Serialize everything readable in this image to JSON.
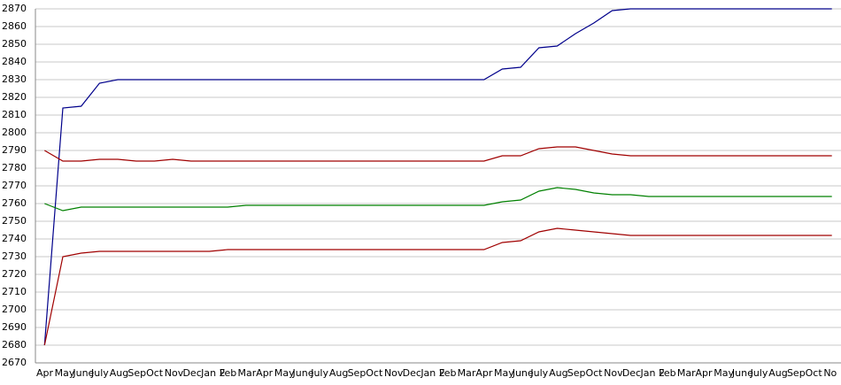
{
  "chart_data": {
    "type": "line",
    "categories": [
      "Apr",
      "May",
      "June",
      "July",
      "Aug",
      "Sep",
      "Oct",
      "Nov",
      "Dec",
      "Jan 2",
      "Feb",
      "Mar",
      "Apr",
      "May",
      "June",
      "July",
      "Aug",
      "Sep",
      "Oct",
      "Nov",
      "Dec",
      "Jan 2",
      "Feb",
      "Mar",
      "Apr",
      "May",
      "June",
      "July",
      "Aug",
      "Sep",
      "Oct",
      "Nov",
      "Dec",
      "Jan 2",
      "Feb",
      "Mar",
      "Apr",
      "May",
      "June",
      "July",
      "Aug",
      "Sep",
      "Oct",
      "No"
    ],
    "series": [
      {
        "color": "#00008b",
        "values": [
          2680,
          2814,
          2815,
          2828,
          2830,
          2830,
          2830,
          2830,
          2830,
          2830,
          2830,
          2830,
          2830,
          2830,
          2830,
          2830,
          2830,
          2830,
          2830,
          2830,
          2830,
          2830,
          2830,
          2830,
          2830,
          2836,
          2837,
          2848,
          2849,
          2856,
          2862,
          2869,
          2870,
          2870,
          2870,
          2870,
          2870,
          2870,
          2870,
          2870,
          2870,
          2870,
          2870,
          2870
        ]
      },
      {
        "color": "#a00000",
        "values": [
          2790,
          2784,
          2784,
          2785,
          2785,
          2784,
          2784,
          2785,
          2784,
          2784,
          2784,
          2784,
          2784,
          2784,
          2784,
          2784,
          2784,
          2784,
          2784,
          2784,
          2784,
          2784,
          2784,
          2784,
          2784,
          2787,
          2787,
          2791,
          2792,
          2792,
          2790,
          2788,
          2787,
          2787,
          2787,
          2787,
          2787,
          2787,
          2787,
          2787,
          2787,
          2787,
          2787,
          2787
        ]
      },
      {
        "color": "#008000",
        "values": [
          2760,
          2756,
          2758,
          2758,
          2758,
          2758,
          2758,
          2758,
          2758,
          2758,
          2758,
          2759,
          2759,
          2759,
          2759,
          2759,
          2759,
          2759,
          2759,
          2759,
          2759,
          2759,
          2759,
          2759,
          2759,
          2761,
          2762,
          2767,
          2769,
          2768,
          2766,
          2765,
          2765,
          2764,
          2764,
          2764,
          2764,
          2764,
          2764,
          2764,
          2764,
          2764,
          2764,
          2764
        ]
      },
      {
        "color": "#a00000",
        "values": [
          2680,
          2730,
          2732,
          2733,
          2733,
          2733,
          2733,
          2733,
          2733,
          2733,
          2734,
          2734,
          2734,
          2734,
          2734,
          2734,
          2734,
          2734,
          2734,
          2734,
          2734,
          2734,
          2734,
          2734,
          2734,
          2738,
          2739,
          2744,
          2746,
          2745,
          2744,
          2743,
          2742,
          2742,
          2742,
          2742,
          2742,
          2742,
          2742,
          2742,
          2742,
          2742,
          2742,
          2742
        ]
      }
    ],
    "ylim": [
      2670,
      2870
    ],
    "yticks": [
      2670,
      2680,
      2690,
      2700,
      2710,
      2720,
      2730,
      2740,
      2750,
      2760,
      2770,
      2780,
      2790,
      2800,
      2810,
      2820,
      2830,
      2840,
      2850,
      2860,
      2870
    ],
    "grid": true
  }
}
